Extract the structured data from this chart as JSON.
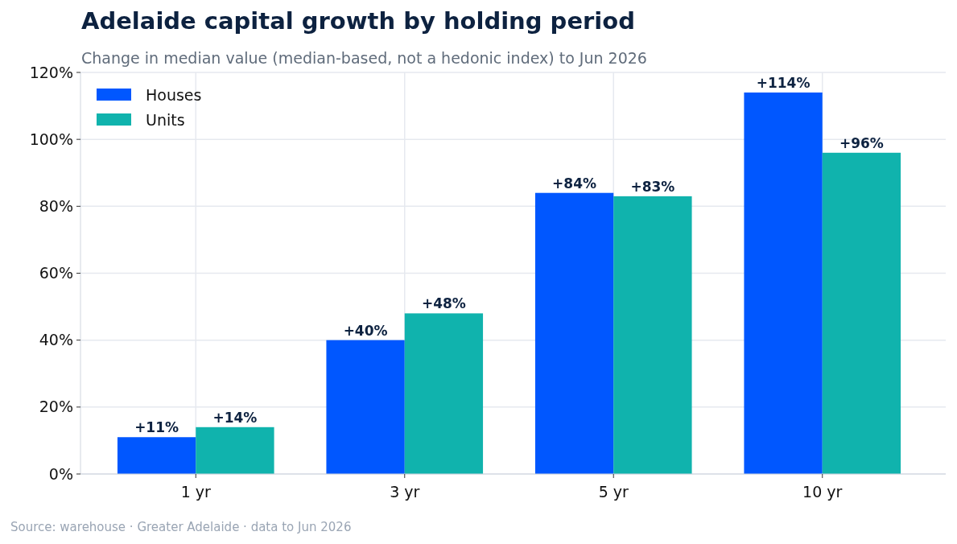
{
  "chart_data": {
    "type": "bar",
    "title": "Adelaide capital growth by holding period",
    "subtitle": "Change in median value (median-based, not a hedonic index) to Jun 2026",
    "annotations": [
      "Source: warehouse  ·  Greater Adelaide  ·  data to Jun 2026"
    ],
    "categories": [
      "1 yr",
      "3 yr",
      "5 yr",
      "10 yr"
    ],
    "series": [
      {
        "name": "Houses",
        "color": "#0057ff",
        "values": [
          11,
          40,
          84,
          114
        ],
        "value_labels": [
          "+11%",
          "+40%",
          "+84%",
          "+114%"
        ]
      },
      {
        "name": "Units",
        "color": "#10b3ad",
        "values": [
          14,
          48,
          83,
          96
        ],
        "value_labels": [
          "+14%",
          "+48%",
          "+83%",
          "+96%"
        ]
      }
    ],
    "ylim": [
      0,
      120
    ],
    "yticks": [
      {
        "value": 0,
        "label": "0%"
      },
      {
        "value": 20,
        "label": "20%"
      },
      {
        "value": 40,
        "label": "40%"
      },
      {
        "value": 60,
        "label": "60%"
      },
      {
        "value": 80,
        "label": "80%"
      },
      {
        "value": 100,
        "label": "100%"
      },
      {
        "value": 120,
        "label": "120%"
      }
    ],
    "grid": true,
    "legend": "top left"
  }
}
